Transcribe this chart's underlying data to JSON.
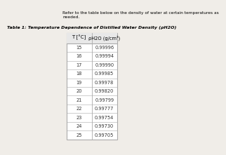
{
  "intro_text": "Refer to the table below on the density of water at certain temperatures as\nneeded.",
  "table_title": "Table 1: Temperature Dependence of Distilled Water Density (ρH2O)",
  "col1_header": "T [°C]",
  "col2_header": "ρH2O (g/cm³)",
  "temperatures": [
    15,
    16,
    17,
    18,
    19,
    20,
    21,
    22,
    23,
    24,
    25
  ],
  "densities": [
    "0.99996",
    "0.99994",
    "0.99990",
    "0.99985",
    "0.99978",
    "0.99820",
    "0.99799",
    "0.99777",
    "0.99754",
    "0.99730",
    "0.99705"
  ],
  "bg_color": "#f0ede8",
  "table_bg": "#ffffff",
  "header_bg": "#e8e8e8",
  "border_color": "#aaaaaa",
  "title_color": "#000000",
  "text_color": "#333333"
}
